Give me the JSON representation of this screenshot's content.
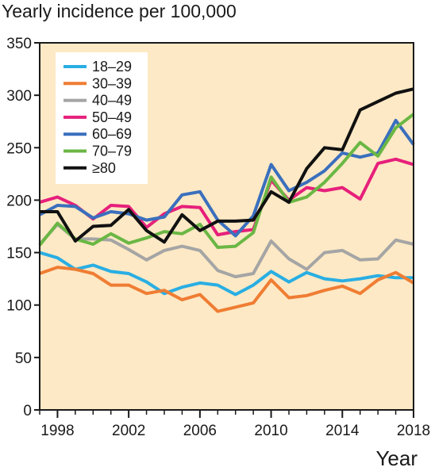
{
  "chart_data": {
    "type": "line",
    "title": "",
    "ylabel": "Yearly incidence per 100,000",
    "xlabel": "Year",
    "xlim": [
      1997,
      2018
    ],
    "ylim": [
      0,
      350
    ],
    "xticks": [
      1998,
      2002,
      2006,
      2010,
      2014,
      2018
    ],
    "yticks": [
      0,
      50,
      100,
      150,
      200,
      250,
      300,
      350
    ],
    "grid": false,
    "legend_position": "top-left",
    "background_color": "#fde9c5",
    "x": [
      1997,
      1998,
      1999,
      2000,
      2001,
      2002,
      2003,
      2004,
      2005,
      2006,
      2007,
      2008,
      2009,
      2010,
      2011,
      2012,
      2013,
      2014,
      2015,
      2016,
      2017,
      2018
    ],
    "series": [
      {
        "name": "18–29",
        "color": "#29aee3",
        "values": [
          150,
          145,
          134,
          138,
          132,
          130,
          122,
          111,
          117,
          121,
          119,
          110,
          119,
          132,
          122,
          131,
          125,
          123,
          125,
          128,
          126,
          126
        ]
      },
      {
        "name": "30–39",
        "color": "#ef7d33",
        "values": [
          130,
          136,
          134,
          130,
          119,
          119,
          111,
          114,
          105,
          110,
          94,
          98,
          102,
          124,
          107,
          109,
          114,
          118,
          111,
          124,
          131,
          121
        ]
      },
      {
        "name": "40–49",
        "color": "#a5a5a5",
        "values": [
          158,
          177,
          163,
          163,
          162,
          153,
          143,
          152,
          156,
          152,
          133,
          127,
          130,
          161,
          144,
          134,
          150,
          152,
          143,
          144,
          162,
          158
        ]
      },
      {
        "name": "50–49",
        "color": "#e6207b",
        "values": [
          198,
          203,
          195,
          182,
          195,
          194,
          174,
          187,
          194,
          193,
          167,
          170,
          172,
          219,
          200,
          212,
          209,
          212,
          201,
          235,
          239,
          234
        ]
      },
      {
        "name": "60–69",
        "color": "#3a6fbd",
        "values": [
          186,
          195,
          194,
          183,
          189,
          187,
          181,
          184,
          205,
          208,
          181,
          166,
          185,
          234,
          209,
          217,
          228,
          245,
          241,
          245,
          276,
          253
        ]
      },
      {
        "name": "70–79",
        "color": "#6ab744",
        "values": [
          157,
          178,
          163,
          158,
          168,
          159,
          164,
          170,
          168,
          177,
          155,
          156,
          169,
          222,
          198,
          203,
          217,
          235,
          255,
          242,
          269,
          282
        ]
      },
      {
        "name": "≥80",
        "color": "#111111",
        "values": [
          189,
          189,
          161,
          175,
          176,
          191,
          171,
          160,
          186,
          171,
          180,
          180,
          181,
          208,
          198,
          230,
          250,
          248,
          286,
          294,
          302,
          306
        ]
      }
    ]
  }
}
